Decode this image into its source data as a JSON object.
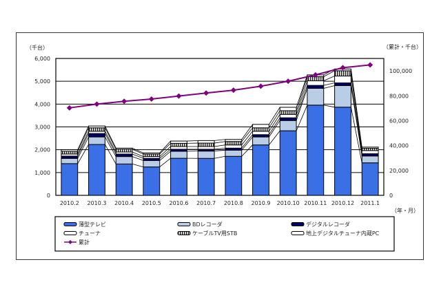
{
  "chart_data": {
    "type": "bar",
    "stacked": true,
    "categories": [
      "2010.2",
      "2010.3",
      "2010.4",
      "2010.5",
      "2010.6",
      "2010.7",
      "2010.8",
      "2010.9",
      "2010.10",
      "2010.11",
      "2010.12",
      "2011.1"
    ],
    "left_axis": {
      "unit_label": "（千台）",
      "ylim": [
        0,
        6000
      ],
      "ticks": [
        "0",
        "1,000",
        "2,000",
        "3,000",
        "4,000",
        "5,000",
        "6,000"
      ]
    },
    "right_axis": {
      "unit_label": "（累計・千台）",
      "ylim": [
        0,
        110000
      ],
      "ticks": [
        "0",
        "20,000",
        "40,000",
        "60,000",
        "80,000",
        "100,000"
      ]
    },
    "xlabel": "（年・月）",
    "grid": true,
    "legend_position": "bottom",
    "series": [
      {
        "name": "薄型テレビ",
        "color": "#3a6fe6",
        "values": [
          1390,
          2230,
          1375,
          1245,
          1625,
          1620,
          1710,
          2210,
          2830,
          3955,
          3865,
          1425
        ]
      },
      {
        "name": "BDレコーダ",
        "color": "#b9cde6",
        "values": [
          230,
          330,
          325,
          280,
          305,
          320,
          270,
          350,
          450,
          735,
          945,
          300
        ]
      },
      {
        "name": "デジタルレコーダ",
        "color": "#000066",
        "values": [
          100,
          150,
          110,
          95,
          90,
          80,
          90,
          100,
          120,
          130,
          120,
          100
        ]
      },
      {
        "name": "チューナ",
        "color": "#ffffff",
        "values": [
          90,
          100,
          90,
          80,
          120,
          120,
          140,
          150,
          150,
          200,
          300,
          140
        ]
      },
      {
        "name": "ケーブルTV用STB",
        "color": "hatch",
        "values": [
          120,
          150,
          120,
          110,
          140,
          150,
          150,
          150,
          160,
          180,
          230,
          100
        ]
      },
      {
        "name": "地上デジタルチューナ内蔵PC",
        "color": "#ffffff",
        "values": [
          70,
          80,
          50,
          50,
          100,
          110,
          90,
          150,
          150,
          80,
          80,
          50
        ]
      },
      {
        "name": "累計",
        "type": "line",
        "axis": "right",
        "color": "#800080",
        "values": [
          70300,
          73300,
          75600,
          77400,
          79800,
          82200,
          84500,
          87700,
          91700,
          96800,
          102600,
          104800
        ]
      }
    ]
  }
}
